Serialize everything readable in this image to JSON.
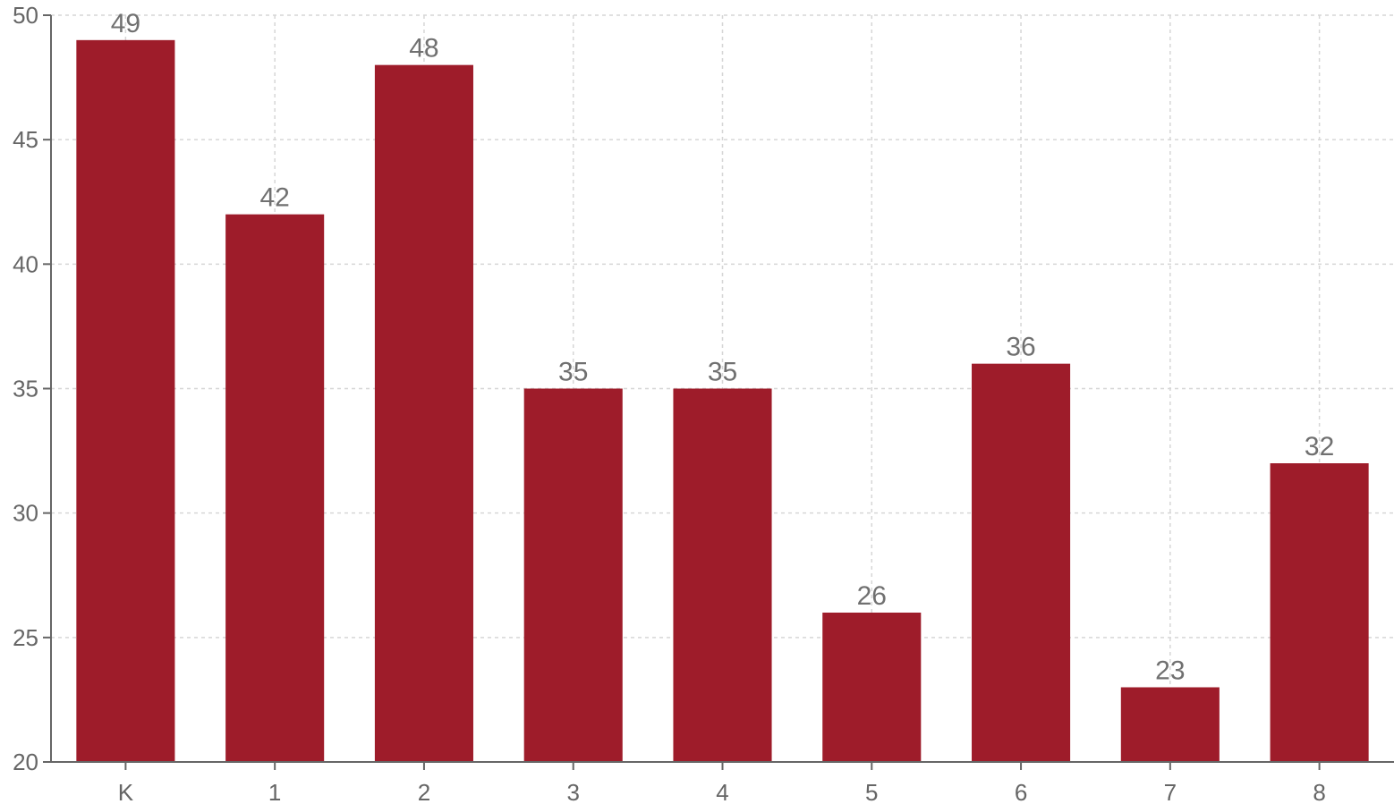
{
  "chart_data": {
    "type": "bar",
    "categories": [
      "K",
      "1",
      "2",
      "3",
      "4",
      "5",
      "6",
      "7",
      "8"
    ],
    "values": [
      49,
      42,
      48,
      35,
      35,
      26,
      36,
      23,
      32
    ],
    "ylim": [
      20,
      50
    ],
    "yticks": [
      20,
      25,
      30,
      35,
      40,
      45,
      50
    ],
    "grid": true,
    "bar_color": "#9e1c2a",
    "data_labels": true
  }
}
